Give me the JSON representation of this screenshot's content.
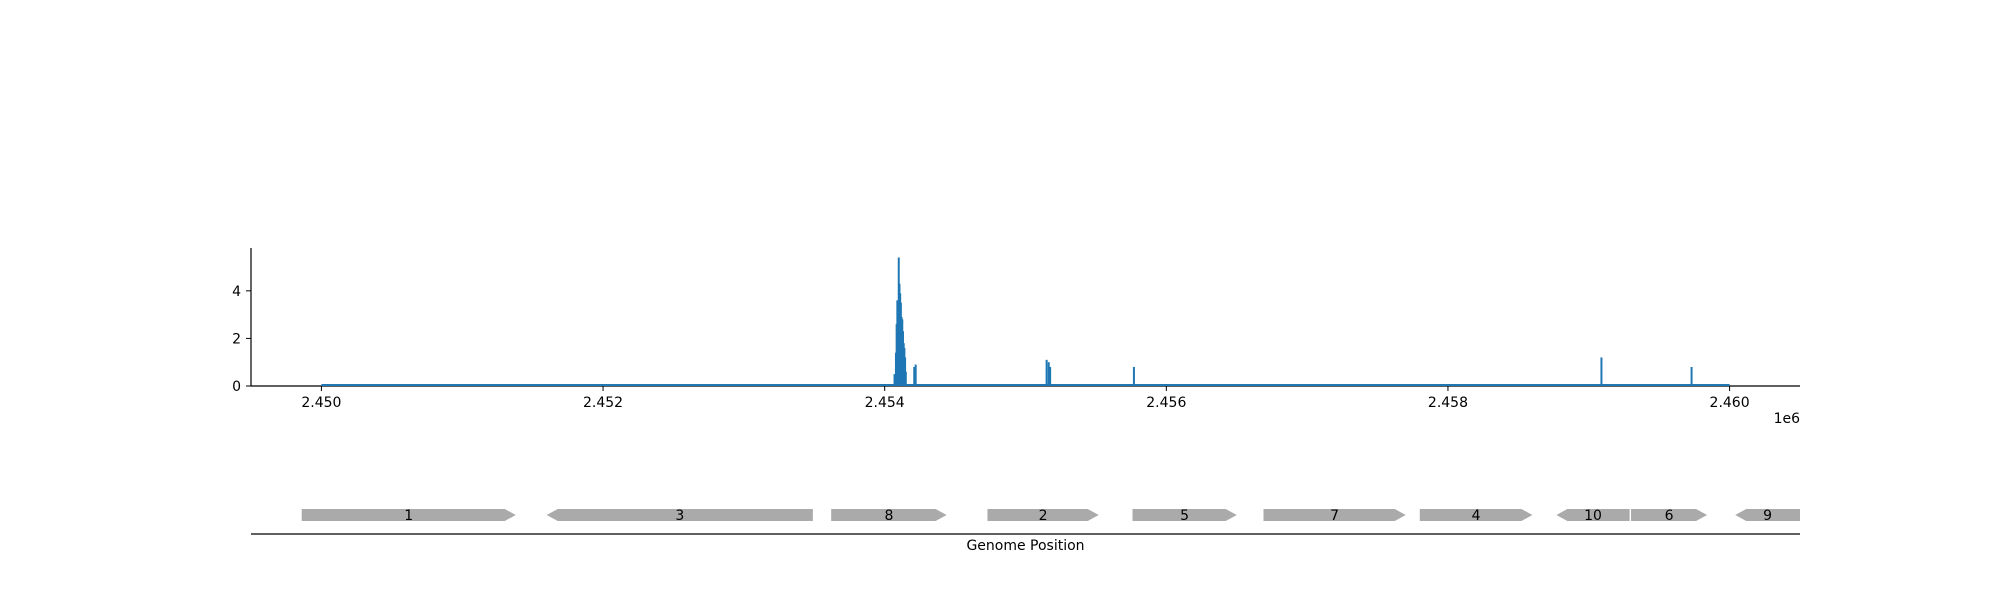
{
  "chart_data": [
    {
      "type": "area",
      "title": "",
      "xlabel": "",
      "ylabel": "",
      "x_range": [
        2449500,
        2460500
      ],
      "ylim": [
        0,
        5.8
      ],
      "x_ticks": [
        2450000,
        2452000,
        2454000,
        2456000,
        2458000,
        2460000
      ],
      "x_tick_labels": [
        "2.450",
        "2.452",
        "2.454",
        "2.456",
        "2.458",
        "2.460"
      ],
      "x_offset_label": "1e6",
      "y_ticks": [
        0,
        2,
        4
      ],
      "y_tick_labels": [
        "0",
        "2",
        "4"
      ],
      "grid": false,
      "series": [
        {
          "color": "#1f77b4",
          "peaks": [
            {
              "x": 2454070,
              "y": 0.5
            },
            {
              "x": 2454080,
              "y": 1.4
            },
            {
              "x": 2454085,
              "y": 2.6
            },
            {
              "x": 2454090,
              "y": 3.6
            },
            {
              "x": 2454095,
              "y": 3.1
            },
            {
              "x": 2454100,
              "y": 5.4
            },
            {
              "x": 2454105,
              "y": 4.3
            },
            {
              "x": 2454110,
              "y": 3.9
            },
            {
              "x": 2454115,
              "y": 3.5
            },
            {
              "x": 2454120,
              "y": 2.9
            },
            {
              "x": 2454125,
              "y": 2.8
            },
            {
              "x": 2454130,
              "y": 2.3
            },
            {
              "x": 2454135,
              "y": 1.8
            },
            {
              "x": 2454140,
              "y": 1.6
            },
            {
              "x": 2454145,
              "y": 1.2
            },
            {
              "x": 2454150,
              "y": 0.6
            },
            {
              "x": 2454210,
              "y": 0.8
            },
            {
              "x": 2454220,
              "y": 0.9
            },
            {
              "x": 2455150,
              "y": 1.1
            },
            {
              "x": 2455165,
              "y": 1.0
            },
            {
              "x": 2455175,
              "y": 0.8
            },
            {
              "x": 2455770,
              "y": 0.8
            },
            {
              "x": 2459090,
              "y": 1.2
            },
            {
              "x": 2459730,
              "y": 0.8
            }
          ]
        }
      ]
    },
    {
      "type": "gene-map",
      "xlabel": "Genome Position",
      "color": "#aaaaaa",
      "genes": [
        {
          "label": "1",
          "start": 2449860,
          "end": 2451380,
          "strand": "+"
        },
        {
          "label": "3",
          "start": 2451600,
          "end": 2453490,
          "strand": "-"
        },
        {
          "label": "8",
          "start": 2453620,
          "end": 2454440,
          "strand": "+"
        },
        {
          "label": "2",
          "start": 2454730,
          "end": 2455520,
          "strand": "+"
        },
        {
          "label": "5",
          "start": 2455760,
          "end": 2456500,
          "strand": "+"
        },
        {
          "label": "7",
          "start": 2456690,
          "end": 2457700,
          "strand": "+"
        },
        {
          "label": "4",
          "start": 2457800,
          "end": 2458600,
          "strand": "+"
        },
        {
          "label": "10",
          "start": 2458770,
          "end": 2459290,
          "strand": "-"
        },
        {
          "label": "6",
          "start": 2459300,
          "end": 2459840,
          "strand": "+"
        },
        {
          "label": "9",
          "start": 2460040,
          "end": 2460500,
          "strand": "-"
        }
      ]
    }
  ]
}
